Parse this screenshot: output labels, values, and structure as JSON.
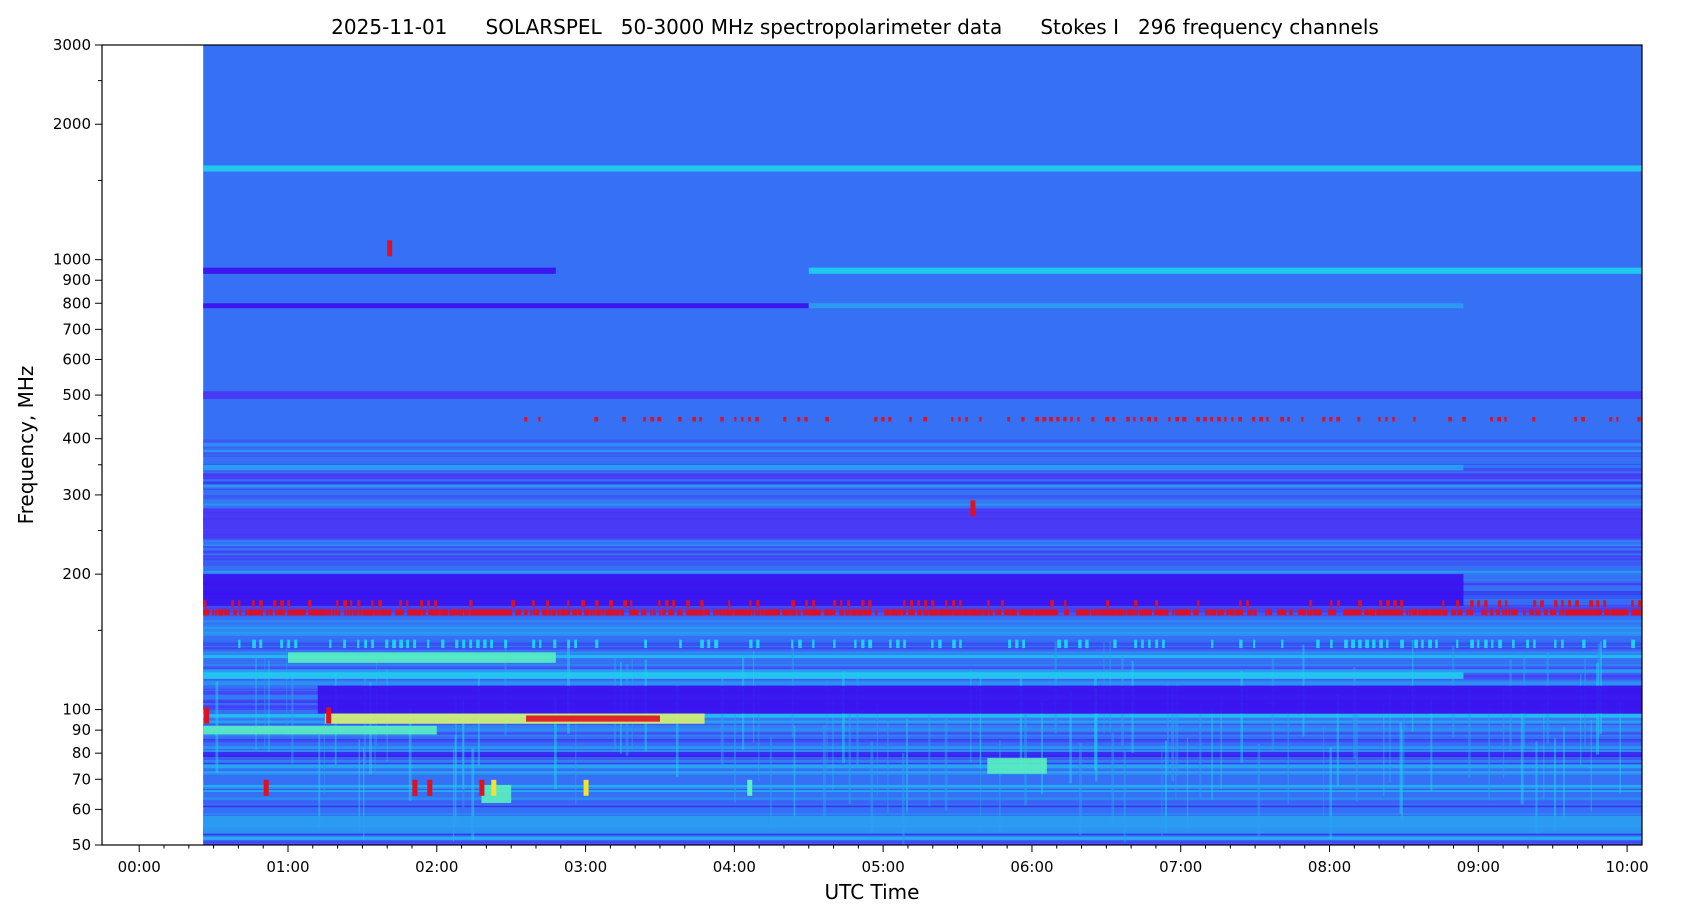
{
  "chart_data": {
    "type": "heatmap",
    "title": "2025-11-01      SOLARSPEL   50-3000 MHz spectropolarimeter data      Stokes I   296 frequency channels",
    "xlabel": "UTC Time",
    "ylabel": "Frequency, MHz",
    "x_ticks": [
      "00:00",
      "01:00",
      "02:00",
      "03:00",
      "04:00",
      "05:00",
      "06:00",
      "07:00",
      "08:00",
      "09:00",
      "10:00"
    ],
    "x_tick_hours": [
      0,
      1,
      2,
      3,
      4,
      5,
      6,
      7,
      8,
      9,
      10
    ],
    "xlim_hours": [
      -0.25,
      10.1
    ],
    "y_scale": "log",
    "ylim": [
      50,
      3000
    ],
    "y_ticks": [
      50,
      60,
      70,
      80,
      90,
      100,
      200,
      300,
      400,
      500,
      600,
      700,
      800,
      900,
      1000,
      2000,
      3000
    ],
    "y_minor_ticks": [
      150,
      250,
      350,
      450,
      1500,
      2500
    ],
    "data_start_hour": 0.43,
    "data_end_hour": 10.1,
    "colormap": {
      "background": "#3570f5",
      "colors": [
        "#3a10f0",
        "#4a35f5",
        "#3570f5",
        "#2aa0f2",
        "#20d0f0",
        "#5af0c0",
        "#d8f070",
        "#f8e030",
        "#f07020",
        "#e01020"
      ]
    },
    "features": [
      {
        "label": "1600 MHz line",
        "freq_low": 1570,
        "freq_high": 1620,
        "t_start": 0.43,
        "t_end": 10.1,
        "color": "#20d0f0"
      },
      {
        "label": "950 MHz band",
        "freq_low": 930,
        "freq_high": 960,
        "t_start": 0.43,
        "t_end": 2.8,
        "color": "#3a10f0"
      },
      {
        "label": "950 MHz band",
        "freq_low": 930,
        "freq_high": 960,
        "t_start": 4.5,
        "t_end": 10.1,
        "color": "#20d0f0"
      },
      {
        "label": "790 MHz band",
        "freq_low": 780,
        "freq_high": 800,
        "t_start": 0.43,
        "t_end": 4.5,
        "color": "#3a10f0"
      },
      {
        "label": "790 MHz band",
        "freq_low": 780,
        "freq_high": 800,
        "t_start": 4.5,
        "t_end": 8.9,
        "color": "#2aa0f2"
      },
      {
        "label": "500 MHz band",
        "freq_low": 490,
        "freq_high": 510,
        "t_start": 0.43,
        "t_end": 10.1,
        "color": "#4a35f5"
      },
      {
        "label": "440 MHz interference",
        "freq_low": 437,
        "freq_high": 447,
        "t_start": 2.4,
        "t_end": 10.1,
        "color": "#e01020",
        "style": "dashed"
      },
      {
        "label": "345 MHz band",
        "freq_low": 340,
        "freq_high": 350,
        "t_start": 0.43,
        "t_end": 8.9,
        "color": "#2aa0f2"
      },
      {
        "label": "330 MHz band",
        "freq_low": 325,
        "freq_high": 335,
        "t_start": 0.43,
        "t_end": 10.1,
        "color": "#4a35f5"
      },
      {
        "label": "240-280 MHz band",
        "freq_low": 240,
        "freq_high": 280,
        "t_start": 0.43,
        "t_end": 10.1,
        "color": "#4a35f5"
      },
      {
        "label": "170-200 MHz band",
        "freq_low": 170,
        "freq_high": 200,
        "t_start": 0.43,
        "t_end": 8.9,
        "color": "#3a10f0"
      },
      {
        "label": "172 MHz interference",
        "freq_low": 169,
        "freq_high": 175,
        "t_start": 0.43,
        "t_end": 10.1,
        "color": "#e01020",
        "style": "dashed"
      },
      {
        "label": "165 MHz interference",
        "freq_low": 162,
        "freq_high": 167,
        "t_start": 0.43,
        "t_end": 10.1,
        "color": "#e01020",
        "style": "dense"
      },
      {
        "label": "140 MHz line",
        "freq_low": 137,
        "freq_high": 143,
        "t_start": 0.43,
        "t_end": 10.1,
        "color": "#20d0f0",
        "style": "dashed"
      },
      {
        "label": "130 MHz band",
        "freq_low": 127,
        "freq_high": 134,
        "t_start": 1.0,
        "t_end": 2.8,
        "color": "#5af0c0"
      },
      {
        "label": "120 MHz line",
        "freq_low": 117,
        "freq_high": 121,
        "t_start": 0.43,
        "t_end": 8.9,
        "color": "#20d0f0"
      },
      {
        "label": "100-110 MHz band",
        "freq_low": 98,
        "freq_high": 113,
        "t_start": 1.2,
        "t_end": 10.1,
        "color": "#3a10f0"
      },
      {
        "label": "95 MHz burst",
        "freq_low": 93,
        "freq_high": 98,
        "t_start": 1.25,
        "t_end": 3.8,
        "color": "#d8f070"
      },
      {
        "label": "95 MHz burst core",
        "freq_low": 94,
        "freq_high": 97,
        "t_start": 2.6,
        "t_end": 3.5,
        "color": "#e01020"
      },
      {
        "label": "90 MHz band",
        "freq_low": 88,
        "freq_high": 92,
        "t_start": 0.43,
        "t_end": 2.0,
        "color": "#5af0c0"
      },
      {
        "label": "75 MHz patch",
        "freq_low": 72,
        "freq_high": 78,
        "t_start": 5.7,
        "t_end": 6.1,
        "color": "#5af0c0"
      },
      {
        "label": "65 MHz band",
        "freq_low": 62,
        "freq_high": 68,
        "t_start": 2.3,
        "t_end": 2.5,
        "color": "#5af0c0"
      },
      {
        "label": "55 MHz band",
        "freq_low": 53,
        "freq_high": 58,
        "t_start": 0.43,
        "t_end": 10.1,
        "color": "#2aa0f2"
      }
    ],
    "spots": [
      {
        "hour": 0.85,
        "freq": 67,
        "color": "#e01020"
      },
      {
        "hour": 1.85,
        "freq": 67,
        "color": "#e01020"
      },
      {
        "hour": 1.95,
        "freq": 67,
        "color": "#e01020"
      },
      {
        "hour": 2.3,
        "freq": 67,
        "color": "#e01020"
      },
      {
        "hour": 2.38,
        "freq": 67,
        "color": "#f8e030"
      },
      {
        "hour": 3.0,
        "freq": 67,
        "color": "#f8e030"
      },
      {
        "hour": 4.1,
        "freq": 67,
        "color": "#5af0c0"
      },
      {
        "hour": 5.6,
        "freq": 280,
        "color": "#e01020"
      },
      {
        "hour": 0.45,
        "freq": 97,
        "color": "#e01020"
      },
      {
        "hour": 1.27,
        "freq": 97,
        "color": "#e01020"
      },
      {
        "hour": 1.68,
        "freq": 1060,
        "color": "#e01020"
      }
    ]
  }
}
